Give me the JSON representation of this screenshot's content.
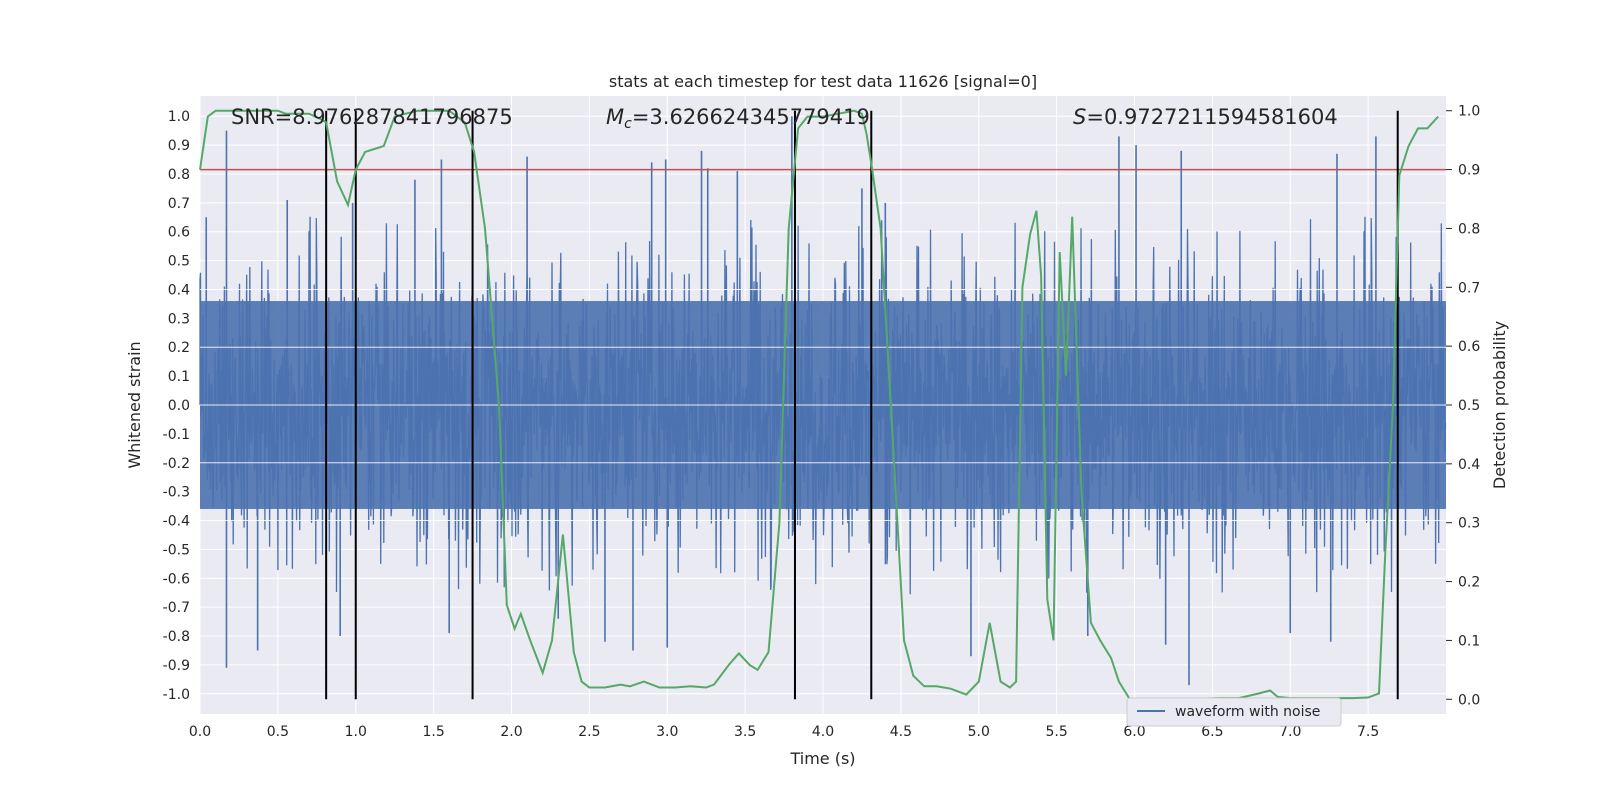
{
  "chart_data": {
    "type": "line",
    "title": "stats at each timestep for test data 11626 [signal=0]",
    "xlabel": "Time (s)",
    "ylabel": "Whitened strain",
    "y2label": "Detection probability",
    "xlim": [
      0.0,
      8.0
    ],
    "ylim": [
      -1.07,
      1.07
    ],
    "y2lim": [
      -0.025,
      1.025
    ],
    "x_ticks": [
      "0.0",
      "0.5",
      "1.0",
      "1.5",
      "2.0",
      "2.5",
      "3.0",
      "3.5",
      "4.0",
      "4.5",
      "5.0",
      "5.5",
      "6.0",
      "6.5",
      "7.0",
      "7.5"
    ],
    "y_ticks": [
      "1.0",
      "0.9",
      "0.8",
      "0.7",
      "0.6",
      "0.5",
      "0.4",
      "0.3",
      "0.2",
      "0.1",
      "0.0",
      "-0.1",
      "-0.2",
      "-0.3",
      "-0.4",
      "-0.5",
      "-0.6",
      "-0.7",
      "-0.8",
      "-0.9",
      "-1.0"
    ],
    "y2_ticks": [
      "1.0",
      "0.9",
      "0.8",
      "0.7",
      "0.6",
      "0.5",
      "0.4",
      "0.3",
      "0.2",
      "0.1",
      "0.0"
    ],
    "threshold": {
      "y2": 0.9,
      "color": "#c44e52"
    },
    "annotations": {
      "snr": "SNR=8.976287841796875",
      "mc": "=3.626624345779419",
      "s": "=0.9727211594581604",
      "mc_symbol": "M",
      "mc_subscript": "c",
      "s_symbol": "S"
    },
    "vlines_x": [
      0.81,
      1.0,
      1.75,
      3.82,
      4.31,
      7.69
    ],
    "vline_range_y2": [
      0.0,
      1.0
    ],
    "legend": {
      "label": "waveform with noise",
      "position": "lower right"
    },
    "series": [
      {
        "name": "waveform with noise",
        "axis": "left",
        "color": "#4c72b0",
        "kind": "noise",
        "samples": 2400,
        "core_amplitude": 0.38,
        "spikes": [
          {
            "x": 0.17,
            "y": 0.95
          },
          {
            "x": 0.04,
            "y": 0.65
          },
          {
            "x": 0.56,
            "y": 0.71
          },
          {
            "x": 0.98,
            "y": 0.7
          },
          {
            "x": 1.38,
            "y": 0.78
          },
          {
            "x": 1.55,
            "y": 0.85
          },
          {
            "x": 2.1,
            "y": 0.86
          },
          {
            "x": 2.9,
            "y": 0.84
          },
          {
            "x": 3.22,
            "y": 0.88
          },
          {
            "x": 3.26,
            "y": 0.82
          },
          {
            "x": 3.45,
            "y": 0.81
          },
          {
            "x": 3.8,
            "y": 1.0
          },
          {
            "x": 4.25,
            "y": 0.75
          },
          {
            "x": 4.4,
            "y": 0.7
          },
          {
            "x": 5.9,
            "y": 0.93
          },
          {
            "x": 6.3,
            "y": 0.88
          },
          {
            "x": 7.55,
            "y": 0.93
          },
          {
            "x": 2.99,
            "y": 0.85
          },
          {
            "x": 6.01,
            "y": 0.9
          },
          {
            "x": 7.3,
            "y": 0.87
          },
          {
            "x": 0.17,
            "y": -0.91
          },
          {
            "x": 0.37,
            "y": -0.85
          },
          {
            "x": 0.9,
            "y": -0.8
          },
          {
            "x": 1.6,
            "y": -0.79
          },
          {
            "x": 2.6,
            "y": -0.82
          },
          {
            "x": 2.78,
            "y": -0.85
          },
          {
            "x": 4.95,
            "y": -0.87
          },
          {
            "x": 6.35,
            "y": -0.97
          },
          {
            "x": 6.2,
            "y": -0.83
          },
          {
            "x": 7.0,
            "y": -0.79
          },
          {
            "x": 7.26,
            "y": -0.82
          },
          {
            "x": 5.7,
            "y": -0.8
          },
          {
            "x": 3.0,
            "y": -0.84
          },
          {
            "x": 2.3,
            "y": -0.74
          }
        ]
      },
      {
        "name": "detection probability",
        "axis": "right",
        "color": "#55a868",
        "x": [
          0.0,
          0.05,
          0.1,
          0.2,
          0.3,
          0.4,
          0.5,
          0.55,
          0.6,
          0.65,
          0.7,
          0.78,
          0.81,
          0.88,
          0.95,
          1.0,
          1.06,
          1.18,
          1.25,
          1.32,
          1.4,
          1.5,
          1.6,
          1.7,
          1.76,
          1.83,
          1.92,
          1.97,
          2.02,
          2.06,
          2.12,
          2.2,
          2.26,
          2.33,
          2.4,
          2.45,
          2.5,
          2.6,
          2.7,
          2.76,
          2.85,
          2.95,
          3.05,
          3.15,
          3.25,
          3.3,
          3.4,
          3.46,
          3.53,
          3.58,
          3.65,
          3.72,
          3.78,
          3.84,
          3.9,
          4.0,
          4.1,
          4.2,
          4.25,
          4.28,
          4.31,
          4.37,
          4.44,
          4.52,
          4.58,
          4.65,
          4.73,
          4.82,
          4.92,
          5.0,
          5.07,
          5.14,
          5.2,
          5.24,
          5.28,
          5.33,
          5.37,
          5.4,
          5.44,
          5.48,
          5.52,
          5.56,
          5.6,
          5.66,
          5.72,
          5.78,
          5.85,
          5.9,
          5.97,
          6.05,
          6.2,
          6.4,
          6.55,
          6.67,
          6.8,
          6.87,
          6.92,
          7.0,
          7.2,
          7.4,
          7.5,
          7.57,
          7.61,
          7.66,
          7.7,
          7.76,
          7.82,
          7.88,
          7.95
        ],
        "values": [
          0.9,
          0.99,
          1.0,
          1.0,
          1.0,
          1.0,
          1.0,
          0.995,
          0.995,
          0.995,
          0.995,
          0.985,
          0.98,
          0.88,
          0.84,
          0.9,
          0.93,
          0.94,
          0.99,
          0.995,
          1.0,
          1.0,
          1.0,
          0.98,
          0.93,
          0.8,
          0.5,
          0.16,
          0.12,
          0.145,
          0.1,
          0.045,
          0.1,
          0.28,
          0.08,
          0.03,
          0.02,
          0.02,
          0.025,
          0.022,
          0.03,
          0.02,
          0.02,
          0.022,
          0.02,
          0.025,
          0.06,
          0.078,
          0.058,
          0.05,
          0.08,
          0.3,
          0.8,
          0.97,
          0.99,
          0.99,
          0.995,
          1.0,
          0.995,
          0.96,
          0.91,
          0.8,
          0.48,
          0.1,
          0.04,
          0.022,
          0.022,
          0.018,
          0.008,
          0.03,
          0.13,
          0.03,
          0.02,
          0.03,
          0.7,
          0.79,
          0.83,
          0.72,
          0.17,
          0.1,
          0.76,
          0.55,
          0.82,
          0.35,
          0.13,
          0.1,
          0.07,
          0.03,
          0.0,
          0.0,
          0.001,
          0.001,
          0.002,
          0.002,
          0.01,
          0.015,
          0.004,
          0.002,
          0.002,
          0.002,
          0.003,
          0.01,
          0.25,
          0.5,
          0.89,
          0.94,
          0.97,
          0.97,
          0.99
        ]
      }
    ]
  }
}
